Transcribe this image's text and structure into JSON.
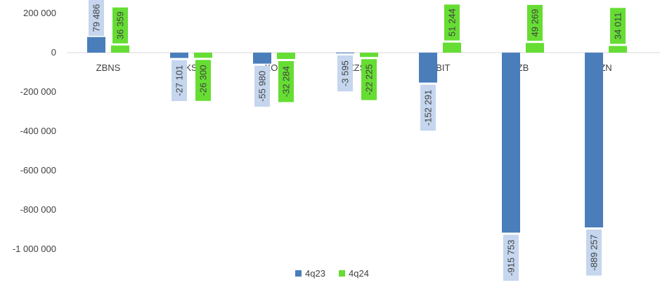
{
  "chart_data": {
    "type": "bar",
    "categories": [
      "ZBNS",
      "KS",
      "KOZ",
      "ZZS",
      "EBIT",
      "ZB",
      "ZN"
    ],
    "series": [
      {
        "name": "4q23",
        "values": [
          79486,
          -27101,
          -55980,
          -3595,
          -152291,
          -915753,
          -889257
        ],
        "labels": [
          "79 486",
          "-27 101",
          "-55 980",
          "-3 595",
          "-152 291",
          "-915 753",
          "-889 257"
        ]
      },
      {
        "name": "4q24",
        "values": [
          36359,
          -26300,
          -32284,
          -22225,
          51244,
          49269,
          34011
        ],
        "labels": [
          "36 359",
          "-26 300",
          "-32 284",
          "-22 225",
          "51 244",
          "49 269",
          "34 011"
        ]
      }
    ],
    "y_ticks": [
      200000,
      0,
      -200000,
      -400000,
      -600000,
      -800000,
      -1000000
    ],
    "y_tick_labels": [
      "200 000",
      "0",
      "-200 000",
      "-400 000",
      "-600 000",
      "-800 000",
      "-1 000 000"
    ],
    "ylim": [
      -1100000,
      210000
    ],
    "grid": false,
    "legend_position": "bottom",
    "colors": {
      "4q23": "#4A7EBB",
      "4q24": "#66DD33",
      "label_bg_4q23": "#C5D6EE",
      "label_bg_4q24": "#66DD33",
      "text": "#404040",
      "axis": "#D9D9D9"
    }
  }
}
